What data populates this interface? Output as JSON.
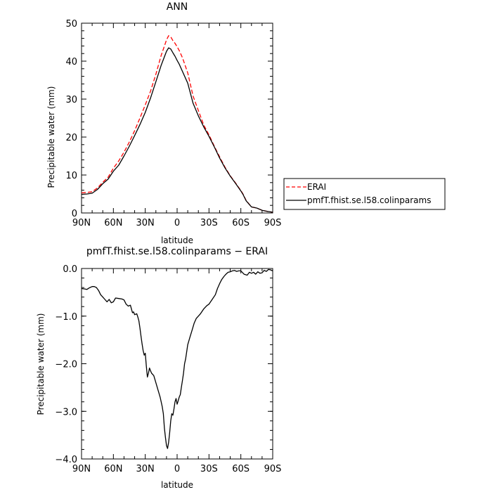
{
  "chart_data": [
    {
      "type": "line",
      "title": "ANN",
      "xlabel": "latitude",
      "ylabel": "Precipitable water (mm)",
      "xlim": [
        90,
        -90
      ],
      "ylim": [
        0,
        50
      ],
      "x_ticks": [
        90,
        60,
        30,
        0,
        -30,
        -60,
        -90
      ],
      "x_tick_labels": [
        "90N",
        "60N",
        "30N",
        "0",
        "30S",
        "60S",
        "90S"
      ],
      "y_ticks": [
        0,
        10,
        20,
        30,
        40,
        50
      ],
      "y_tick_labels": [
        "0",
        "10",
        "20",
        "30",
        "40",
        "50"
      ],
      "legend_position": "right",
      "series": [
        {
          "name": "ERAI",
          "color": "#ff0000",
          "dash": "dashed",
          "x": [
            90,
            85,
            80,
            75,
            70,
            65,
            60,
            55,
            50,
            45,
            40,
            35,
            30,
            25,
            20,
            15,
            10,
            8,
            6,
            4,
            2,
            0,
            -2,
            -5,
            -10,
            -15,
            -20,
            -25,
            -30,
            -35,
            -40,
            -45,
            -50,
            -55,
            -60,
            -62,
            -65,
            -70,
            -75,
            -80,
            -85,
            -90
          ],
          "values": [
            5.3,
            5.4,
            5.6,
            6.6,
            8.1,
            9.4,
            11.8,
            13.7,
            16.0,
            18.7,
            21.7,
            25.0,
            28.5,
            32.1,
            36.6,
            41.5,
            45.6,
            46.7,
            46.4,
            45.4,
            44.7,
            43.8,
            42.8,
            40.9,
            36.9,
            30.8,
            27.0,
            23.2,
            20.6,
            17.6,
            14.8,
            12.1,
            9.8,
            7.9,
            5.9,
            5.0,
            3.3,
            1.6,
            1.3,
            0.7,
            0.4,
            0.2
          ]
        },
        {
          "name": "pmfT.fhist.se.l58.colinparams",
          "color": "#000000",
          "dash": "solid",
          "x": [
            90,
            85,
            80,
            75,
            70,
            65,
            60,
            55,
            50,
            45,
            40,
            35,
            30,
            25,
            20,
            15,
            10,
            8,
            6,
            4,
            2,
            0,
            -2,
            -5,
            -10,
            -15,
            -20,
            -25,
            -30,
            -35,
            -40,
            -45,
            -50,
            -55,
            -60,
            -62,
            -65,
            -70,
            -75,
            -80,
            -85,
            -90
          ],
          "values": [
            4.9,
            5.0,
            5.2,
            6.2,
            7.7,
            8.9,
            11.0,
            12.6,
            15.0,
            17.6,
            20.4,
            23.3,
            26.5,
            30.3,
            34.6,
            38.9,
            42.6,
            43.5,
            43.2,
            42.2,
            41.3,
            40.2,
            39.2,
            37.3,
            34.2,
            28.9,
            25.6,
            22.7,
            20.2,
            17.4,
            14.5,
            11.9,
            9.7,
            7.8,
            5.8,
            4.9,
            3.2,
            1.6,
            1.3,
            0.7,
            0.4,
            0.2
          ]
        }
      ]
    },
    {
      "type": "line",
      "title": "pmfT.fhist.se.l58.colinparams − ERAI",
      "xlabel": "latitude",
      "ylabel": "Precipitable water (mm)",
      "xlim": [
        90,
        -90
      ],
      "ylim": [
        -4.0,
        0.0
      ],
      "x_ticks": [
        90,
        60,
        30,
        0,
        -30,
        -60,
        -90
      ],
      "x_tick_labels": [
        "90N",
        "60N",
        "30N",
        "0",
        "30S",
        "60S",
        "90S"
      ],
      "y_ticks": [
        -4.0,
        -3.0,
        -2.0,
        -1.0,
        0.0
      ],
      "y_tick_labels": [
        "−4.0",
        "−3.0",
        "−2.0",
        "−1.0",
        "0.0"
      ],
      "series": [
        {
          "color": "#000000",
          "dash": "solid",
          "x": [
            90,
            87,
            85,
            83,
            80,
            78,
            76,
            74,
            72,
            70,
            68,
            66,
            64,
            62,
            60,
            58,
            55,
            52,
            50,
            48,
            46,
            44,
            43,
            42,
            41,
            40,
            38,
            37,
            36,
            35,
            34,
            33,
            32,
            31,
            30,
            29,
            28,
            27,
            26,
            25,
            24,
            22,
            20,
            18,
            16,
            14,
            13,
            12,
            11,
            10,
            9,
            8,
            7,
            6,
            5,
            4,
            3,
            2,
            1,
            0,
            -1,
            -2,
            -3,
            -4,
            -5,
            -6,
            -7,
            -8,
            -9,
            -10,
            -12,
            -14,
            -16,
            -18,
            -20,
            -22,
            -25,
            -28,
            -30,
            -33,
            -36,
            -38,
            -40,
            -42,
            -44,
            -46,
            -48,
            -50,
            -52,
            -54,
            -56,
            -58,
            -60,
            -63,
            -66,
            -68,
            -70,
            -72,
            -74,
            -76,
            -78,
            -80,
            -82,
            -84,
            -86,
            -88,
            -90
          ],
          "values": [
            -0.42,
            -0.43,
            -0.44,
            -0.41,
            -0.38,
            -0.38,
            -0.4,
            -0.46,
            -0.55,
            -0.6,
            -0.65,
            -0.7,
            -0.65,
            -0.72,
            -0.7,
            -0.62,
            -0.63,
            -0.64,
            -0.66,
            -0.75,
            -0.79,
            -0.77,
            -0.85,
            -0.93,
            -0.91,
            -0.97,
            -0.95,
            -1.02,
            -1.1,
            -1.25,
            -1.42,
            -1.58,
            -1.72,
            -1.82,
            -1.78,
            -2.05,
            -2.28,
            -2.2,
            -2.09,
            -2.15,
            -2.2,
            -2.25,
            -2.4,
            -2.55,
            -2.7,
            -2.9,
            -3.05,
            -3.35,
            -3.55,
            -3.72,
            -3.78,
            -3.65,
            -3.45,
            -3.2,
            -3.05,
            -3.08,
            -2.95,
            -2.8,
            -2.73,
            -2.85,
            -2.78,
            -2.7,
            -2.65,
            -2.5,
            -2.35,
            -2.2,
            -2.0,
            -1.9,
            -1.75,
            -1.6,
            -1.45,
            -1.3,
            -1.15,
            -1.05,
            -1.0,
            -0.95,
            -0.85,
            -0.78,
            -0.75,
            -0.65,
            -0.55,
            -0.42,
            -0.32,
            -0.23,
            -0.17,
            -0.12,
            -0.08,
            -0.07,
            -0.05,
            -0.04,
            -0.06,
            -0.05,
            -0.05,
            -0.12,
            -0.14,
            -0.08,
            -0.1,
            -0.08,
            -0.12,
            -0.07,
            -0.1,
            -0.09,
            -0.04,
            -0.06,
            -0.02,
            -0.03,
            -0.05
          ]
        }
      ]
    }
  ]
}
